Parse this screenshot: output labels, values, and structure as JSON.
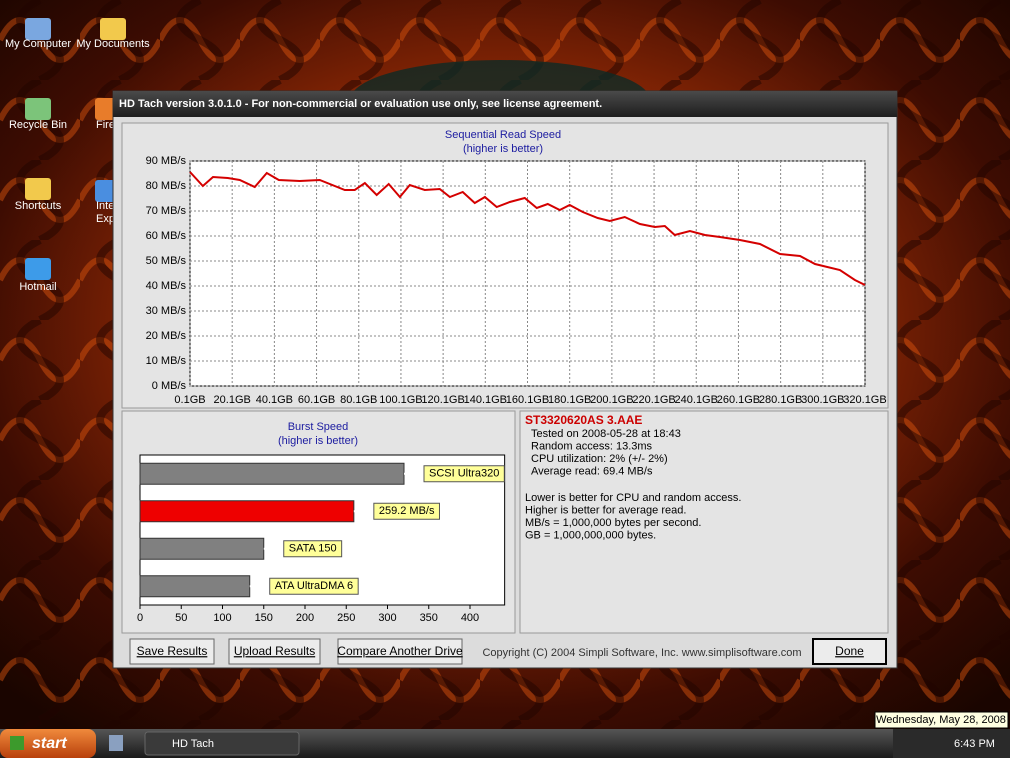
{
  "desktop": {
    "icons": [
      {
        "label": "My Computer"
      },
      {
        "label": "My Documents"
      },
      {
        "label": "Recycle Bin"
      },
      {
        "label": "Fire"
      },
      {
        "label": "Shortcuts"
      },
      {
        "label": "Inte"
      },
      {
        "label": "Exp"
      },
      {
        "label": "Hotmail"
      }
    ]
  },
  "window": {
    "title": "HD Tach version 3.0.1.0  - For non-commercial or evaluation use only, see license agreement."
  },
  "chart_data": [
    {
      "type": "line",
      "title": "Sequential Read Speed",
      "subtitle": "(higher is better)",
      "color": "#d40000",
      "x": [
        0.1,
        6.2,
        11,
        18,
        23.7,
        30.8,
        36.5,
        42.2,
        52.1,
        61.6,
        73.5,
        78.2,
        83,
        88.6,
        94.3,
        99.6,
        104.3,
        111.4,
        118.5,
        123.3,
        129.4,
        135.1,
        139.9,
        145.5,
        151.7,
        158.8,
        164.5,
        169.7,
        175.4,
        180.1,
        186.3,
        193.4,
        199.1,
        206.2,
        213.4,
        220.5,
        225.2,
        229.9,
        237.1,
        244.2,
        251.3,
        260.8,
        270.3,
        279.8,
        289.3,
        296.4,
        308.2,
        315.3,
        320.1
      ],
      "values": [
        85.6,
        80,
        83.6,
        83.2,
        82.4,
        79.6,
        85.2,
        82.4,
        82,
        82.4,
        78.4,
        78.4,
        81.2,
        76.4,
        80.8,
        75.6,
        80.4,
        78.4,
        78.8,
        75.6,
        77.6,
        73.2,
        75.6,
        71.6,
        73.6,
        75.2,
        71.2,
        72.8,
        70.4,
        72.4,
        69.6,
        67.2,
        66,
        67.6,
        64.8,
        63.6,
        64,
        60.4,
        62,
        60.4,
        59.6,
        58.4,
        56.8,
        52.8,
        52,
        48.8,
        46.4,
        42.4,
        40.4
      ],
      "xlim": [
        0.1,
        320.1
      ],
      "xticks": [
        {
          "value": 0.1,
          "label": "0.1GB"
        },
        {
          "value": 20.1,
          "label": "20.1GB"
        },
        {
          "value": 40.1,
          "label": "40.1GB"
        },
        {
          "value": 60.1,
          "label": "60.1GB"
        },
        {
          "value": 80.1,
          "label": "80.1GB"
        },
        {
          "value": 100.1,
          "label": "100.1GB"
        },
        {
          "value": 120.1,
          "label": "120.1GB"
        },
        {
          "value": 140.1,
          "label": "140.1GB"
        },
        {
          "value": 160.1,
          "label": "160.1GB"
        },
        {
          "value": 180.1,
          "label": "180.1GB"
        },
        {
          "value": 200.1,
          "label": "200.1GB"
        },
        {
          "value": 220.1,
          "label": "220.1GB"
        },
        {
          "value": 240.1,
          "label": "240.1GB"
        },
        {
          "value": 260.1,
          "label": "260.1GB"
        },
        {
          "value": 280.1,
          "label": "280.1GB"
        },
        {
          "value": 300.1,
          "label": "300.1GB"
        },
        {
          "value": 320.1,
          "label": "320.1GB"
        }
      ],
      "ylim": [
        0,
        90
      ],
      "yticks": [
        {
          "value": 0,
          "label": "0 MB/s"
        },
        {
          "value": 10,
          "label": "10 MB/s"
        },
        {
          "value": 20,
          "label": "20 MB/s"
        },
        {
          "value": 30,
          "label": "30 MB/s"
        },
        {
          "value": 40,
          "label": "40 MB/s"
        },
        {
          "value": 50,
          "label": "50 MB/s"
        },
        {
          "value": 60,
          "label": "60 MB/s"
        },
        {
          "value": 70,
          "label": "70 MB/s"
        },
        {
          "value": 80,
          "label": "80 MB/s"
        },
        {
          "value": 90,
          "label": "90 MB/s"
        }
      ],
      "grid": true
    },
    {
      "type": "bar",
      "orientation": "horizontal",
      "title": "Burst Speed",
      "subtitle": "(higher is better)",
      "categories": [
        "SCSI Ultra320",
        null,
        "SATA 150",
        "ATA UltraDMA 6"
      ],
      "values": [
        320,
        259.2,
        150,
        133
      ],
      "value_labels": [
        null,
        "259.2 MB/s",
        null,
        null
      ],
      "colors": [
        "#808080",
        "#ee0000",
        "#808080",
        "#808080"
      ],
      "xlim": [
        0,
        442
      ],
      "xticks": [
        0,
        50,
        100,
        150,
        200,
        250,
        300,
        350,
        400
      ],
      "grid": false
    }
  ],
  "info": {
    "drive": "ST3320620AS 3.AAE",
    "details": [
      "Tested on 2008-05-28 at 18:43",
      "Random access: 13.3ms",
      "CPU utilization: 2% (+/- 2%)",
      "Average read: 69.4 MB/s"
    ],
    "notes": [
      "Lower is better for CPU and random access.",
      "Higher is better for average read.",
      "MB/s = 1,000,000 bytes per second.",
      "GB = 1,000,000,000 bytes."
    ]
  },
  "buttons": [
    "Save Results",
    "Upload Results",
    "Compare Another Drive",
    "Done"
  ],
  "copyright": "Copyright (C) 2004 Simpli Software, Inc. www.simplisoftware.com",
  "taskbar": {
    "start": "start",
    "task": "HD Tach",
    "clock": "6:43 PM",
    "tooltip": "Wednesday, May 28, 2008"
  }
}
